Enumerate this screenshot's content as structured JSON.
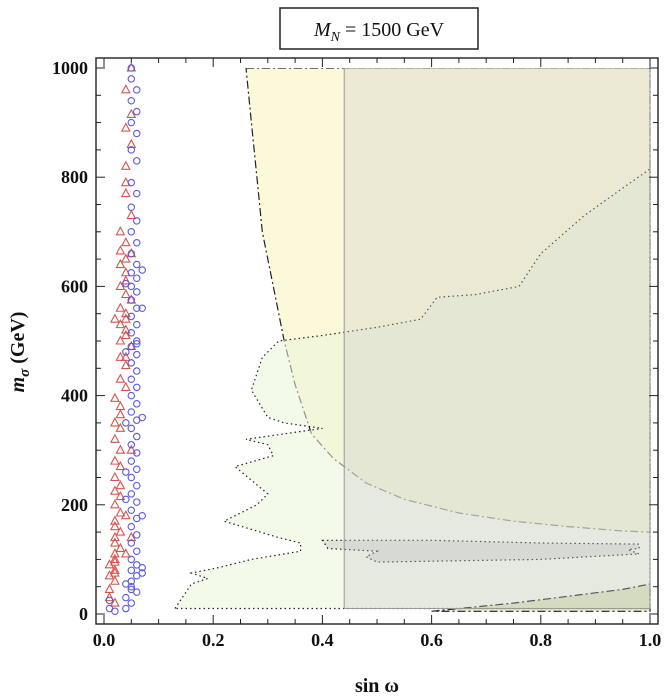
{
  "chart_data": {
    "type": "scatter",
    "title": {
      "var": "M",
      "sub": "N",
      "rest": " = 1500 GeV"
    },
    "xlabel": "sin ω",
    "ylabel": {
      "var": "m",
      "sub": "σ",
      "rest": " (GeV)"
    },
    "xlim": [
      0.0,
      1.0
    ],
    "ylim": [
      0,
      1000
    ],
    "xticks": [
      "0.0",
      "0.2",
      "0.4",
      "0.6",
      "0.8",
      "1.0"
    ],
    "yticks": [
      "0",
      "200",
      "400",
      "600",
      "800",
      "1000"
    ],
    "colors": {
      "triangle": "#d9534f",
      "circle": "#5a5ae0",
      "region_yellow": "#fbf7cf",
      "region_green": "#eaf5d8",
      "region_olive": "#c9d39a",
      "region_gray": "#c8c8c8"
    },
    "regions": [
      {
        "name": "dash-dot-upper-region",
        "style": "dashdot",
        "fill": "region_yellow",
        "opacity": 0.75,
        "points": [
          [
            0.26,
            1000
          ],
          [
            1.0,
            1000
          ],
          [
            1.0,
            150
          ],
          [
            0.95,
            152
          ],
          [
            0.85,
            160
          ],
          [
            0.75,
            170
          ],
          [
            0.65,
            185
          ],
          [
            0.55,
            210
          ],
          [
            0.48,
            240
          ],
          [
            0.42,
            285
          ],
          [
            0.38,
            330
          ],
          [
            0.35,
            420
          ],
          [
            0.33,
            500
          ],
          [
            0.31,
            600
          ],
          [
            0.29,
            700
          ],
          [
            0.28,
            800
          ],
          [
            0.27,
            900
          ],
          [
            0.26,
            1000
          ]
        ]
      },
      {
        "name": "dotted-jagged-region",
        "style": "dotted",
        "fill": "region_green",
        "opacity": 0.55,
        "points": [
          [
            0.13,
            10
          ],
          [
            0.14,
            25
          ],
          [
            0.16,
            55
          ],
          [
            0.19,
            65
          ],
          [
            0.16,
            75
          ],
          [
            0.21,
            85
          ],
          [
            0.27,
            100
          ],
          [
            0.36,
            115
          ],
          [
            0.36,
            130
          ],
          [
            0.32,
            140
          ],
          [
            0.22,
            170
          ],
          [
            0.28,
            200
          ],
          [
            0.3,
            220
          ],
          [
            0.24,
            270
          ],
          [
            0.31,
            290
          ],
          [
            0.3,
            310
          ],
          [
            0.26,
            320
          ],
          [
            0.4,
            340
          ],
          [
            0.33,
            350
          ],
          [
            0.3,
            360
          ],
          [
            0.27,
            410
          ],
          [
            0.29,
            470
          ],
          [
            0.32,
            500
          ],
          [
            0.4,
            510
          ],
          [
            0.5,
            525
          ],
          [
            0.58,
            540
          ],
          [
            0.61,
            580
          ],
          [
            0.68,
            585
          ],
          [
            0.76,
            600
          ],
          [
            0.8,
            660
          ],
          [
            0.88,
            730
          ],
          [
            0.95,
            780
          ],
          [
            1.0,
            815
          ],
          [
            1.0,
            10
          ],
          [
            0.13,
            10
          ]
        ]
      },
      {
        "name": "dotted-band-region",
        "style": "dotted",
        "fill": "region_gray",
        "opacity": 0.45,
        "points": [
          [
            0.4,
            135
          ],
          [
            0.6,
            135
          ],
          [
            0.8,
            130
          ],
          [
            0.98,
            128
          ],
          [
            0.98,
            120
          ],
          [
            0.96,
            118
          ],
          [
            0.98,
            110
          ],
          [
            0.8,
            100
          ],
          [
            0.5,
            95
          ],
          [
            0.48,
            105
          ],
          [
            0.5,
            115
          ],
          [
            0.41,
            120
          ],
          [
            0.4,
            135
          ]
        ]
      },
      {
        "name": "dash-dot-lower-region",
        "style": "dashdot",
        "fill": "region_olive",
        "opacity": 0.55,
        "points": [
          [
            0.6,
            5
          ],
          [
            0.75,
            20
          ],
          [
            0.87,
            35
          ],
          [
            0.95,
            45
          ],
          [
            1.0,
            55
          ],
          [
            1.0,
            5
          ],
          [
            0.6,
            5
          ]
        ]
      },
      {
        "name": "gray-rectangle-region",
        "style": "solid",
        "fill": "region_gray",
        "opacity": 0.32,
        "points": [
          [
            0.44,
            10
          ],
          [
            1.0,
            10
          ],
          [
            1.0,
            1000
          ],
          [
            0.44,
            1000
          ],
          [
            0.44,
            10
          ]
        ]
      }
    ],
    "series": [
      {
        "name": "triangles",
        "marker": "triangle",
        "color_key": "triangle",
        "points": [
          [
            0.05,
            1000
          ],
          [
            0.04,
            960
          ],
          [
            0.05,
            915
          ],
          [
            0.04,
            890
          ],
          [
            0.05,
            860
          ],
          [
            0.04,
            820
          ],
          [
            0.04,
            790
          ],
          [
            0.04,
            770
          ],
          [
            0.05,
            730
          ],
          [
            0.03,
            700
          ],
          [
            0.04,
            680
          ],
          [
            0.03,
            665
          ],
          [
            0.04,
            650
          ],
          [
            0.03,
            640
          ],
          [
            0.04,
            625
          ],
          [
            0.04,
            610
          ],
          [
            0.03,
            600
          ],
          [
            0.04,
            585
          ],
          [
            0.05,
            575
          ],
          [
            0.03,
            560
          ],
          [
            0.04,
            550
          ],
          [
            0.04,
            540
          ],
          [
            0.03,
            530
          ],
          [
            0.04,
            520
          ],
          [
            0.04,
            510
          ],
          [
            0.03,
            500
          ],
          [
            0.05,
            490
          ],
          [
            0.04,
            470
          ],
          [
            0.04,
            455
          ],
          [
            0.03,
            430
          ],
          [
            0.04,
            415
          ],
          [
            0.02,
            395
          ],
          [
            0.03,
            380
          ],
          [
            0.03,
            365
          ],
          [
            0.02,
            350
          ],
          [
            0.03,
            340
          ],
          [
            0.02,
            320
          ],
          [
            0.03,
            300
          ],
          [
            0.02,
            280
          ],
          [
            0.03,
            270
          ],
          [
            0.02,
            250
          ],
          [
            0.03,
            235
          ],
          [
            0.02,
            225
          ],
          [
            0.03,
            215
          ],
          [
            0.02,
            200
          ],
          [
            0.03,
            185
          ],
          [
            0.02,
            170
          ],
          [
            0.02,
            160
          ],
          [
            0.03,
            150
          ],
          [
            0.02,
            140
          ],
          [
            0.02,
            130
          ],
          [
            0.03,
            120
          ],
          [
            0.02,
            110
          ],
          [
            0.02,
            100
          ],
          [
            0.02,
            95
          ],
          [
            0.01,
            90
          ],
          [
            0.02,
            80
          ],
          [
            0.02,
            75
          ],
          [
            0.01,
            70
          ],
          [
            0.02,
            60
          ],
          [
            0.01,
            45
          ],
          [
            0.01,
            30
          ],
          [
            0.02,
            20
          ],
          [
            0.04,
            180
          ],
          [
            0.05,
            140
          ],
          [
            0.04,
            110
          ],
          [
            0.05,
            300
          ],
          [
            0.05,
            660
          ],
          [
            0.02,
            540
          ],
          [
            0.03,
            470
          ]
        ]
      },
      {
        "name": "circles",
        "marker": "circle",
        "color_key": "circle",
        "points": [
          [
            0.05,
            1000
          ],
          [
            0.05,
            980
          ],
          [
            0.06,
            960
          ],
          [
            0.05,
            940
          ],
          [
            0.06,
            920
          ],
          [
            0.05,
            900
          ],
          [
            0.06,
            880
          ],
          [
            0.05,
            850
          ],
          [
            0.06,
            830
          ],
          [
            0.05,
            790
          ],
          [
            0.06,
            770
          ],
          [
            0.05,
            745
          ],
          [
            0.06,
            720
          ],
          [
            0.05,
            700
          ],
          [
            0.06,
            680
          ],
          [
            0.05,
            660
          ],
          [
            0.06,
            640
          ],
          [
            0.05,
            625
          ],
          [
            0.06,
            615
          ],
          [
            0.05,
            600
          ],
          [
            0.06,
            590
          ],
          [
            0.05,
            575
          ],
          [
            0.06,
            560
          ],
          [
            0.05,
            545
          ],
          [
            0.06,
            530
          ],
          [
            0.05,
            515
          ],
          [
            0.06,
            500
          ],
          [
            0.05,
            490
          ],
          [
            0.06,
            475
          ],
          [
            0.05,
            460
          ],
          [
            0.06,
            445
          ],
          [
            0.05,
            430
          ],
          [
            0.06,
            415
          ],
          [
            0.05,
            400
          ],
          [
            0.06,
            385
          ],
          [
            0.05,
            370
          ],
          [
            0.06,
            355
          ],
          [
            0.05,
            340
          ],
          [
            0.06,
            325
          ],
          [
            0.05,
            310
          ],
          [
            0.06,
            295
          ],
          [
            0.05,
            280
          ],
          [
            0.06,
            265
          ],
          [
            0.05,
            250
          ],
          [
            0.06,
            235
          ],
          [
            0.05,
            220
          ],
          [
            0.06,
            205
          ],
          [
            0.05,
            190
          ],
          [
            0.06,
            175
          ],
          [
            0.05,
            160
          ],
          [
            0.06,
            145
          ],
          [
            0.05,
            130
          ],
          [
            0.06,
            115
          ],
          [
            0.05,
            100
          ],
          [
            0.06,
            90
          ],
          [
            0.05,
            80
          ],
          [
            0.06,
            70
          ],
          [
            0.05,
            60
          ],
          [
            0.04,
            55
          ],
          [
            0.05,
            45
          ],
          [
            0.06,
            40
          ],
          [
            0.04,
            30
          ],
          [
            0.05,
            20
          ],
          [
            0.04,
            10
          ],
          [
            0.01,
            10
          ],
          [
            0.02,
            5
          ],
          [
            0.01,
            25
          ],
          [
            0.07,
            85
          ],
          [
            0.07,
            75
          ],
          [
            0.04,
            210
          ],
          [
            0.04,
            260
          ],
          [
            0.07,
            180
          ],
          [
            0.04,
            350
          ],
          [
            0.04,
            480
          ],
          [
            0.07,
            560
          ],
          [
            0.04,
            605
          ],
          [
            0.07,
            630
          ],
          [
            0.06,
            495
          ],
          [
            0.07,
            360
          ],
          [
            0.05,
            50
          ]
        ]
      }
    ]
  }
}
